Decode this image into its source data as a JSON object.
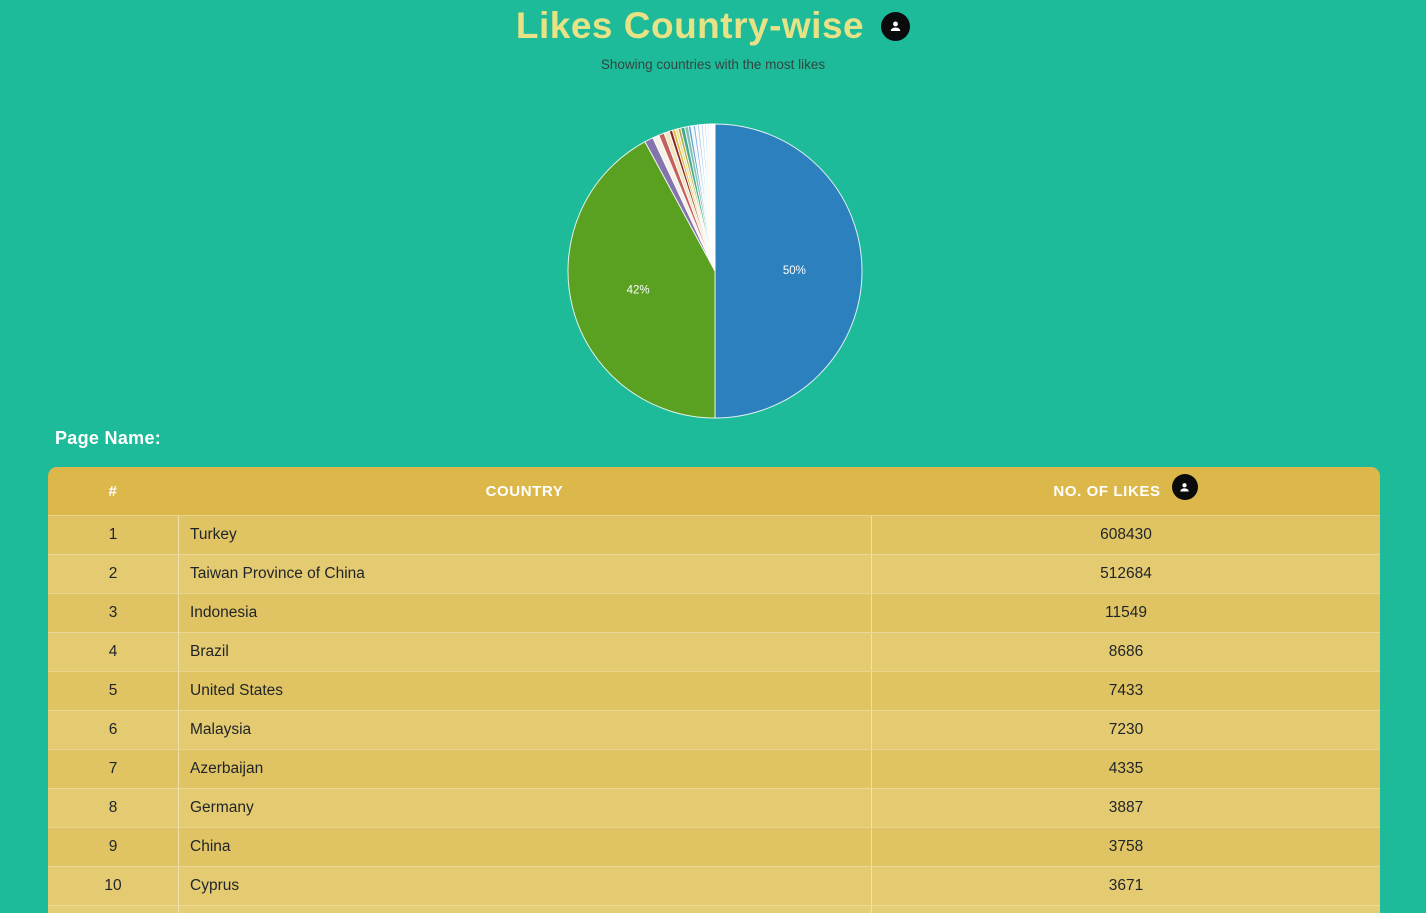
{
  "page": {
    "title": "Likes Country-wise",
    "subtitle": "Showing countries with the most likes",
    "page_name_label": "Page Name:",
    "background_color": "#1dbb9a",
    "title_color": "#e7e285",
    "badge_color": "#0b0b0b"
  },
  "table": {
    "header_color": "#dcb84b",
    "row_color_odd": "#e0c463",
    "row_color_even": "#e4ca70",
    "columns": [
      "#",
      "COUNTRY",
      "NO. OF LIKES"
    ],
    "rows": [
      {
        "rank": "1",
        "country": "Turkey",
        "likes": "608430"
      },
      {
        "rank": "2",
        "country": "Taiwan Province of China",
        "likes": "512684"
      },
      {
        "rank": "3",
        "country": "Indonesia",
        "likes": "11549"
      },
      {
        "rank": "4",
        "country": "Brazil",
        "likes": "8686"
      },
      {
        "rank": "5",
        "country": "United States",
        "likes": "7433"
      },
      {
        "rank": "6",
        "country": "Malaysia",
        "likes": "7230"
      },
      {
        "rank": "7",
        "country": "Azerbaijan",
        "likes": "4335"
      },
      {
        "rank": "8",
        "country": "Germany",
        "likes": "3887"
      },
      {
        "rank": "9",
        "country": "China",
        "likes": "3758"
      },
      {
        "rank": "10",
        "country": "Cyprus",
        "likes": "3671"
      }
    ]
  },
  "chart_data": {
    "type": "pie",
    "title": "Likes Country-wise",
    "subtitle": "Showing countries with the most likes",
    "start_angle": "top",
    "direction": "clockwise",
    "legend_position": "none",
    "label_color": "#ffffff",
    "slices": [
      {
        "name": "Turkey",
        "likes": 608430,
        "percent": 50.0,
        "color": "#2b80bd",
        "label": "50%"
      },
      {
        "name": "Taiwan Province of China",
        "likes": 512684,
        "percent": 42.1,
        "color": "#5aa021",
        "label": "42%"
      },
      {
        "name": "Indonesia",
        "likes": 11549,
        "percent": 0.95,
        "color": "#8374ae"
      },
      {
        "name": "Brazil",
        "likes": 8686,
        "percent": 0.71,
        "color": "#f5f1e6"
      },
      {
        "name": "United States",
        "likes": 7433,
        "percent": 0.61,
        "color": "#c4605e"
      },
      {
        "name": "Malaysia",
        "likes": 7230,
        "percent": 0.59,
        "color": "#f0e6c2"
      },
      {
        "name": "Azerbaijan",
        "likes": 4335,
        "percent": 0.36,
        "color": "#8d2220"
      },
      {
        "name": "Germany",
        "likes": 3887,
        "percent": 0.32,
        "color": "#d9ba45"
      },
      {
        "name": "China",
        "likes": 3758,
        "percent": 0.31,
        "color": "#ece08f"
      },
      {
        "name": "Cyprus",
        "likes": 3671,
        "percent": 0.3,
        "color": "#b1a945"
      }
    ],
    "other_small_slices": [
      {
        "percent": 0.44,
        "color": "#49a88d"
      },
      {
        "percent": 0.4,
        "color": "#7fc2b0"
      },
      {
        "percent": 0.28,
        "color": "#5f9ed0"
      },
      {
        "percent": 0.26,
        "color": "#eef3f7"
      },
      {
        "percent": 0.24,
        "color": "#86b4da"
      },
      {
        "percent": 0.22,
        "color": "#f5f8fa"
      },
      {
        "percent": 0.21,
        "color": "#9ec3e2"
      },
      {
        "percent": 0.2,
        "color": "#ffffff"
      },
      {
        "percent": 0.19,
        "color": "#aecde8"
      },
      {
        "percent": 0.18,
        "color": "#ffffff"
      },
      {
        "percent": 0.17,
        "color": "#bdd6ec"
      },
      {
        "percent": 0.16,
        "color": "#ffffff"
      },
      {
        "percent": 0.15,
        "color": "#cde0f0"
      },
      {
        "percent": 0.14,
        "color": "#ffffff"
      },
      {
        "percent": 0.13,
        "color": "#dce9f4"
      },
      {
        "percent": 0.12,
        "color": "#ffffff"
      },
      {
        "percent": 0.11,
        "color": "#e8f1f8"
      },
      {
        "percent": 0.1,
        "color": "#f1f6fb"
      },
      {
        "percent": 0.05,
        "color": "#ffffff"
      }
    ]
  }
}
